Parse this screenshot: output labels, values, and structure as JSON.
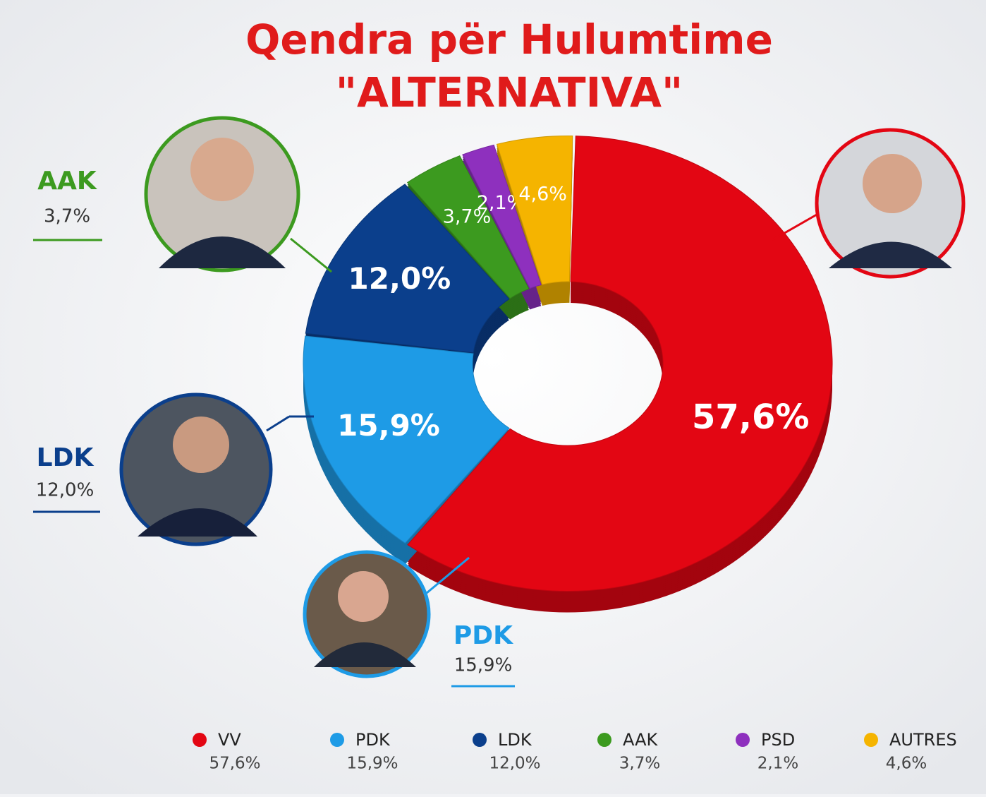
{
  "chart_data": {
    "type": "pie",
    "donut": true,
    "title": [
      "Qendra për Hulumtime",
      "\"ALTERNATIVA\""
    ],
    "categories": [
      "VV",
      "PDK",
      "LDK",
      "AAK",
      "PSD",
      "AUTRES"
    ],
    "values": [
      57.6,
      15.9,
      12.0,
      3.7,
      2.1,
      4.6
    ],
    "value_labels": [
      "57,6%",
      "15,9%",
      "12,0%",
      "3,7%",
      "2,1%",
      "4,6%"
    ],
    "colors": [
      "#e30613",
      "#1e9be6",
      "#0b3f8c",
      "#3c9a1f",
      "#8e30be",
      "#f5b400"
    ]
  }
}
